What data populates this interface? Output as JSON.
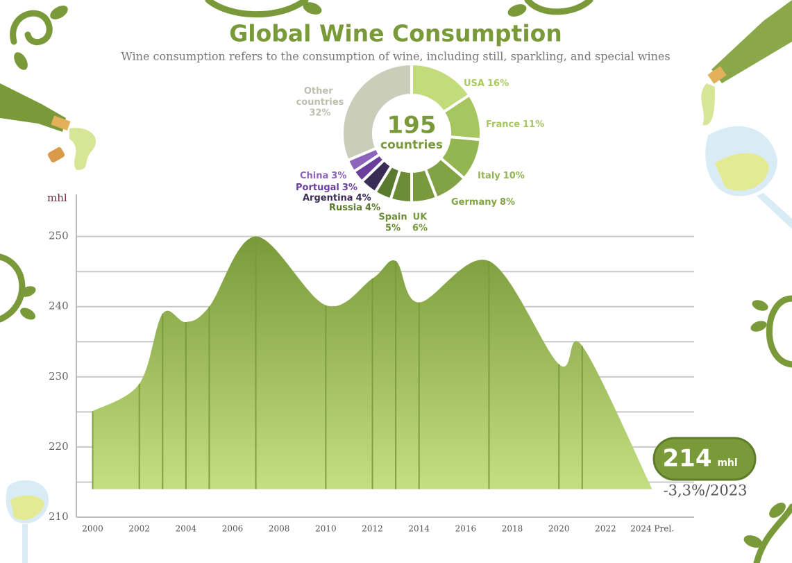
{
  "chart_data": [
    {
      "type": "area",
      "title": "Global Wine Consumption",
      "subtitle": "Wine consumption refers to the consumption of wine, including still, sparkling, and special wines",
      "y_label": "mhl",
      "x": [
        2000,
        2002,
        2003,
        2004,
        2005,
        2007,
        2010,
        2012,
        2013,
        2014,
        2017,
        2020,
        2021,
        2024
      ],
      "series": [
        {
          "color": "#7a9a3a",
          "values": [
            225.1,
            229,
            239,
            237.8,
            240,
            250,
            240.2,
            244,
            246.5,
            240.6,
            246.5,
            231.8,
            234.4,
            214
          ]
        }
      ],
      "xlim": [
        1999.3,
        2025.8
      ],
      "ylim": [
        210,
        256
      ],
      "xticks": [
        2000,
        2002,
        2004,
        2006,
        2008,
        2010,
        2012,
        2014,
        2016,
        2018,
        2020,
        2022,
        {
          "value": 2024,
          "label": "2024 Prel."
        }
      ],
      "yticks": [
        210,
        220,
        230,
        240,
        250
      ],
      "ygrid": [
        215,
        220,
        225,
        230,
        235,
        240,
        245,
        250
      ],
      "callout_unit": "mhl",
      "callout_change": "-3,3%/2023"
    },
    {
      "type": "pie",
      "center_value": "195",
      "center_label": "countries",
      "categories": [
        "USA",
        "France",
        "Italy",
        "Germany",
        "UK",
        "Spain",
        "Russia",
        "Argentina",
        "Portugal",
        "China",
        "Other countries"
      ],
      "values": [
        16,
        11,
        10,
        8,
        6,
        5,
        4,
        4,
        3,
        3,
        32
      ],
      "value_labels": [
        "16%",
        "11%",
        "10%",
        "8%",
        "6%",
        "5%",
        "4%",
        "4%",
        "3%",
        "3%",
        "32%"
      ],
      "colors": [
        "#c2dc7c",
        "#a6c660",
        "#93b552",
        "#82a345",
        "#789a3c",
        "#6b8c34",
        "#5a7a2e",
        "#3b2c55",
        "#6a3f9c",
        "#8c64bb",
        "#c9cdb9"
      ]
    }
  ]
}
